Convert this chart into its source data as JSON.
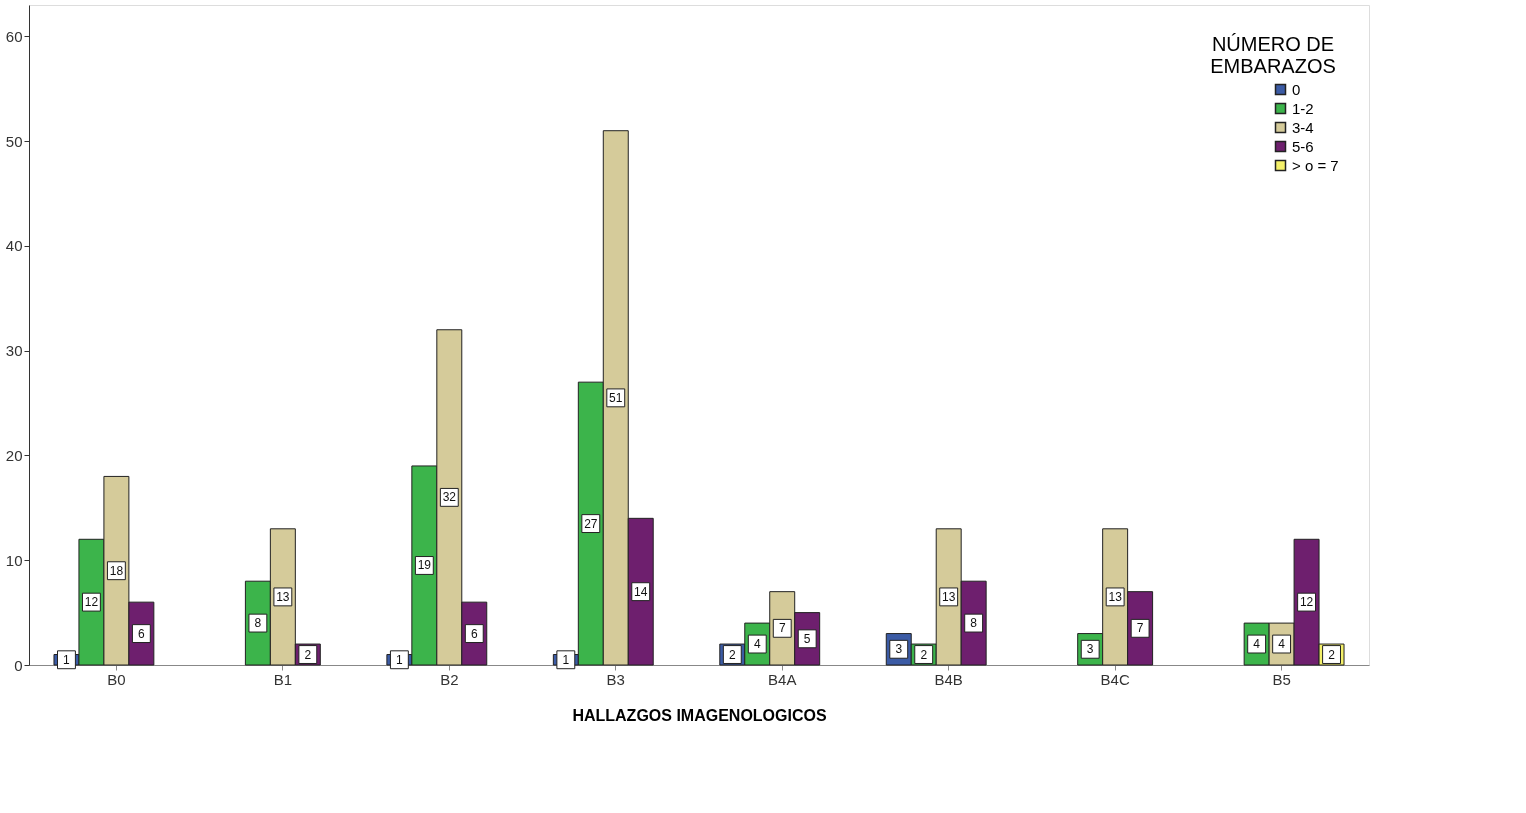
{
  "chart_data": {
    "type": "bar",
    "xlabel": "HALLAZGOS IMAGENOLOGICOS",
    "legend_title": "NÚMERO DE EMBARAZOS",
    "categories": [
      "B0",
      "B1",
      "B2",
      "B3",
      "B4A",
      "B4B",
      "B4C",
      "B5"
    ],
    "series": [
      {
        "name": "0",
        "color": "#3b5ba5",
        "values": [
          1,
          null,
          1,
          1,
          2,
          3,
          null,
          null
        ]
      },
      {
        "name": "1-2",
        "color": "#3cb44b",
        "values": [
          12,
          8,
          19,
          27,
          4,
          2,
          3,
          4
        ]
      },
      {
        "name": "3-4",
        "color": "#d5cb9a",
        "values": [
          18,
          13,
          32,
          51,
          7,
          13,
          13,
          4
        ]
      },
      {
        "name": "5-6",
        "color": "#6e1f6e",
        "values": [
          6,
          2,
          6,
          14,
          5,
          8,
          7,
          12
        ]
      },
      {
        "name": "> o = 7",
        "color": "#f4f06a",
        "values": [
          null,
          null,
          null,
          null,
          null,
          null,
          null,
          2
        ]
      }
    ],
    "ylim": [
      0,
      63
    ],
    "yticks": [
      0,
      10,
      20,
      30,
      40,
      50,
      60
    ],
    "grid": false,
    "legend": "top right",
    "data_labels": true
  }
}
